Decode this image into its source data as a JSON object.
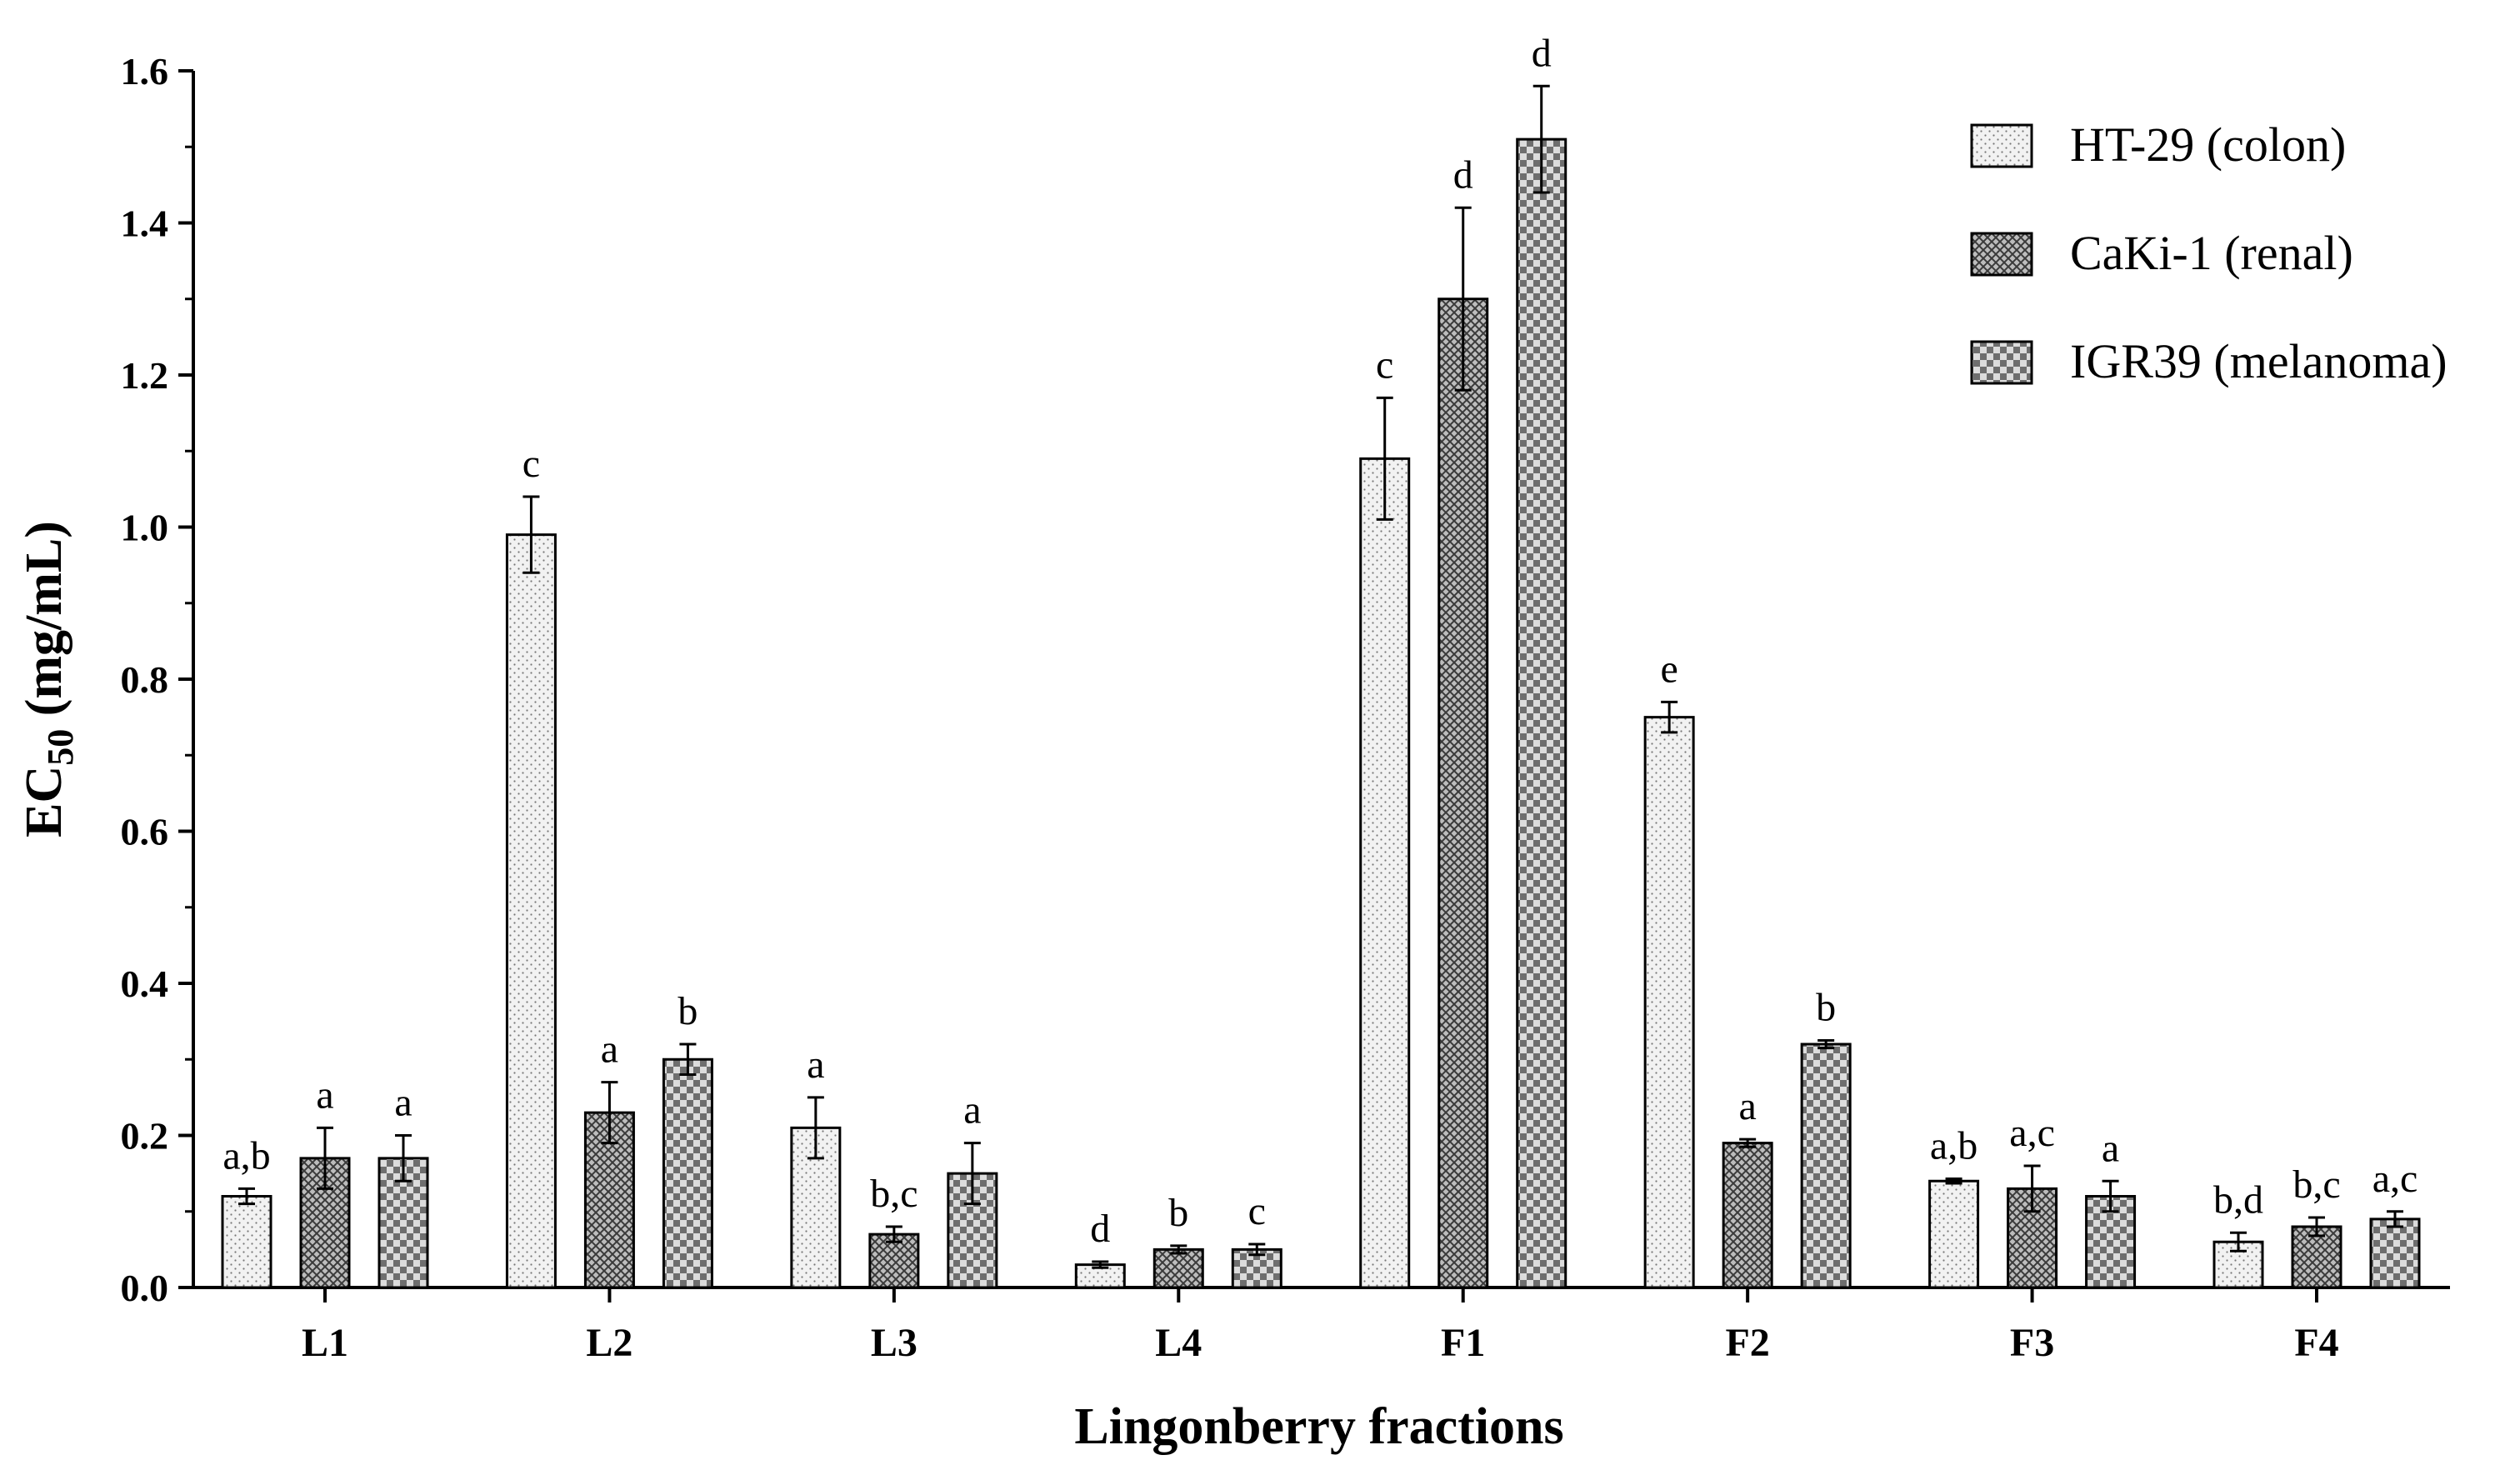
{
  "chart_data": {
    "type": "bar",
    "title": "",
    "xlabel": "Lingonberry fractions",
    "ylabel_main": "EC",
    "ylabel_sub": "50",
    "ylabel_unit": " (mg/mL)",
    "ylim": [
      0,
      1.6
    ],
    "yticks": [
      0.0,
      0.2,
      0.4,
      0.6,
      0.8,
      1.0,
      1.2,
      1.4,
      1.6
    ],
    "ytick_labels": [
      "0.0",
      "0.2",
      "0.4",
      "0.6",
      "0.8",
      "1.0",
      "1.2",
      "1.4",
      "1.6"
    ],
    "grid": false,
    "legend_position": "top-right",
    "categories": [
      "L1",
      "L2",
      "L3",
      "L4",
      "F1",
      "F2",
      "F3",
      "F4"
    ],
    "series": [
      {
        "name": "HT-29 (colon)",
        "pattern": "dots",
        "fill": "#f2f2f2",
        "values": [
          0.12,
          0.99,
          0.21,
          0.03,
          1.09,
          0.75,
          0.14,
          0.06
        ],
        "errors": [
          0.01,
          0.05,
          0.04,
          0.004,
          0.08,
          0.02,
          0.003,
          0.012
        ],
        "annotations": [
          "a,b",
          "c",
          "a",
          "d",
          "c",
          "e",
          "a,b",
          "b,d"
        ]
      },
      {
        "name": "CaKi-1 (renal)",
        "pattern": "crosshatch",
        "fill": "#8c8c8c",
        "values": [
          0.17,
          0.23,
          0.07,
          0.05,
          1.3,
          0.19,
          0.13,
          0.08
        ],
        "errors": [
          0.04,
          0.04,
          0.01,
          0.005,
          0.12,
          0.005,
          0.03,
          0.012
        ],
        "annotations": [
          "a",
          "a",
          "b,c",
          "b",
          "d",
          "a",
          "a,c",
          "b,c"
        ]
      },
      {
        "name": "IGR39 (melanoma)",
        "pattern": "checker",
        "fill": "#9c9c9c",
        "values": [
          0.17,
          0.3,
          0.15,
          0.05,
          1.51,
          0.32,
          0.12,
          0.09
        ],
        "errors": [
          0.03,
          0.02,
          0.04,
          0.007,
          0.07,
          0.005,
          0.02,
          0.01
        ],
        "annotations": [
          "a",
          "b",
          "a",
          "c",
          "d",
          "b",
          "a",
          "a,c"
        ]
      }
    ]
  }
}
